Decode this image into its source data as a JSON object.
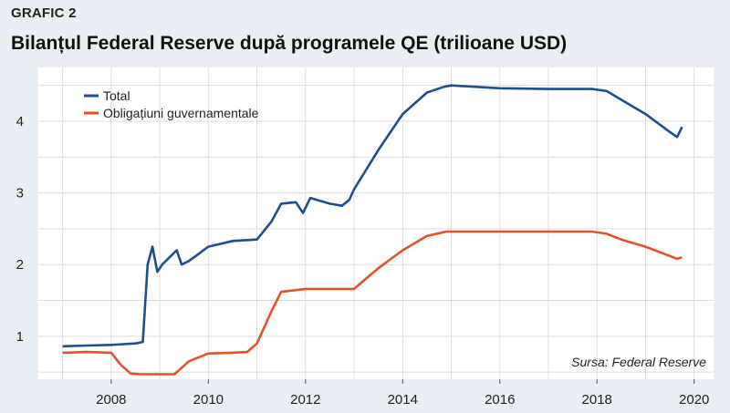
{
  "header": {
    "label": "GRAFIC 2",
    "title": "Bilanțul Federal Reserve după programele QE (trilioane USD)"
  },
  "source": "Sursa: Federal Reserve",
  "colors": {
    "total": "#1f4e8c",
    "obligatiuni": "#e0522b",
    "plot_bg": "#ffffff",
    "grid": "#dcdcdc"
  },
  "chart_data": {
    "type": "line",
    "title": "Bilanțul Federal Reserve după programele QE (trilioane USD)",
    "xlabel": "",
    "ylabel": "",
    "xlim": [
      2006.5,
      2020.4
    ],
    "ylim": [
      0.4,
      4.75
    ],
    "xticks": [
      2008,
      2010,
      2012,
      2014,
      2016,
      2018,
      2020
    ],
    "yticks": [
      1,
      2,
      3,
      4
    ],
    "grid": true,
    "legend_position": "top-left",
    "series": [
      {
        "name": "Total",
        "color": "#1f4e8c",
        "x": [
          2007.0,
          2007.5,
          2008.0,
          2008.5,
          2008.65,
          2008.75,
          2008.85,
          2008.95,
          2009.05,
          2009.2,
          2009.35,
          2009.45,
          2009.6,
          2009.8,
          2010.0,
          2010.5,
          2011.0,
          2011.3,
          2011.5,
          2011.8,
          2011.95,
          2012.1,
          2012.5,
          2012.75,
          2012.9,
          2013.0,
          2013.5,
          2014.0,
          2014.5,
          2014.85,
          2015.0,
          2016.0,
          2017.0,
          2017.9,
          2018.2,
          2018.5,
          2019.0,
          2019.5,
          2019.65,
          2019.75
        ],
        "y": [
          0.86,
          0.87,
          0.88,
          0.9,
          0.92,
          2.0,
          2.25,
          1.9,
          2.0,
          2.1,
          2.2,
          2.0,
          2.05,
          2.15,
          2.25,
          2.33,
          2.35,
          2.6,
          2.85,
          2.87,
          2.72,
          2.93,
          2.85,
          2.82,
          2.9,
          3.05,
          3.6,
          4.1,
          4.4,
          4.48,
          4.5,
          4.46,
          4.45,
          4.45,
          4.42,
          4.3,
          4.1,
          3.85,
          3.78,
          3.92
        ]
      },
      {
        "name": "Obligațiuni guvernamentale",
        "color": "#e0522b",
        "x": [
          2007.0,
          2007.5,
          2008.0,
          2008.2,
          2008.4,
          2008.6,
          2009.0,
          2009.3,
          2009.6,
          2010.0,
          2010.5,
          2010.8,
          2011.0,
          2011.3,
          2011.5,
          2012.0,
          2012.5,
          2013.0,
          2013.5,
          2014.0,
          2014.5,
          2014.9,
          2015.0,
          2016.0,
          2017.0,
          2017.9,
          2018.2,
          2018.5,
          2019.0,
          2019.5,
          2019.65,
          2019.75
        ],
        "y": [
          0.77,
          0.78,
          0.77,
          0.6,
          0.48,
          0.47,
          0.47,
          0.47,
          0.65,
          0.76,
          0.77,
          0.78,
          0.9,
          1.35,
          1.62,
          1.66,
          1.66,
          1.66,
          1.95,
          2.2,
          2.4,
          2.46,
          2.46,
          2.46,
          2.46,
          2.46,
          2.43,
          2.35,
          2.25,
          2.12,
          2.08,
          2.1
        ]
      }
    ]
  }
}
